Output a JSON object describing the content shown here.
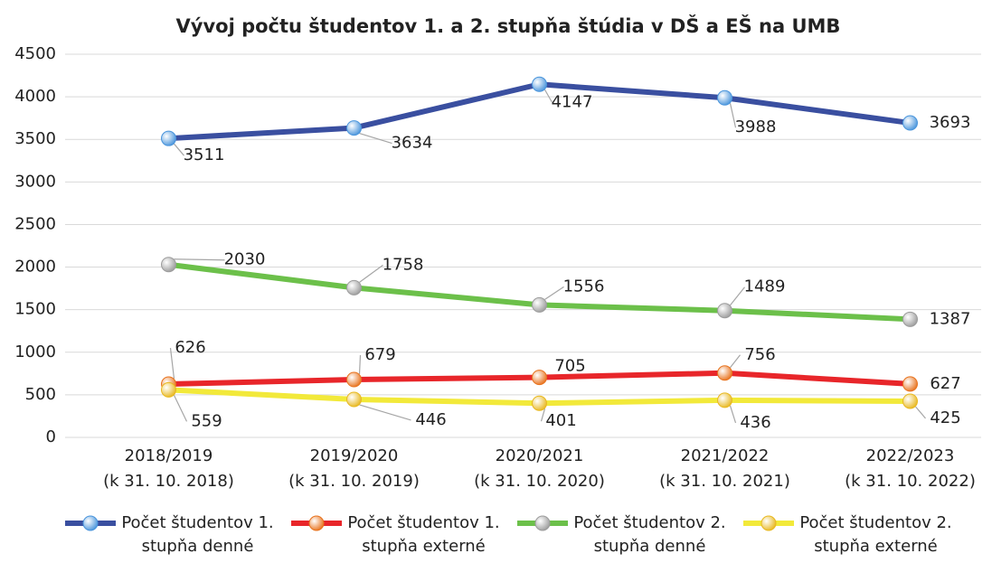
{
  "chart_data": {
    "type": "line",
    "title": "Vývoj počtu študentov 1. a 2. stupňa štúdia v DŠ a EŠ na UMB",
    "categories": [
      "2018/2019",
      "2019/2020",
      "2020/2021",
      "2021/2022",
      "2022/2023"
    ],
    "category_sublabels": [
      "(k 31. 10. 2018)",
      "(k 31. 10. 2019)",
      "(k 31. 10. 2020)",
      "(k 31. 10. 2021)",
      "(k 31. 10. 2022)"
    ],
    "series": [
      {
        "name": "Počet študentov 1. stupňa denné",
        "color": "#3a4fa0",
        "marker_color": "#4a95dc",
        "values": [
          3511,
          3634,
          4147,
          3988,
          3693
        ]
      },
      {
        "name": "Počet študentov 1. stupňa externé",
        "color": "#e8262a",
        "marker_color": "#e8731e",
        "values": [
          626,
          679,
          705,
          756,
          627
        ]
      },
      {
        "name": "Počet študentov 2. stupňa denné",
        "color": "#6cc04a",
        "marker_color": "#9c9c9c",
        "values": [
          2030,
          1758,
          1556,
          1489,
          1387
        ]
      },
      {
        "name": "Počet študentov 2. stupňa externé",
        "color": "#f2e93a",
        "marker_color": "#e8b820",
        "values": [
          559,
          446,
          401,
          436,
          425
        ]
      }
    ],
    "ylim": [
      0,
      4500
    ],
    "yticks": [
      0,
      500,
      1000,
      1500,
      2000,
      2500,
      3000,
      3500,
      4000,
      4500
    ],
    "grid": true,
    "legend": "bottom"
  }
}
